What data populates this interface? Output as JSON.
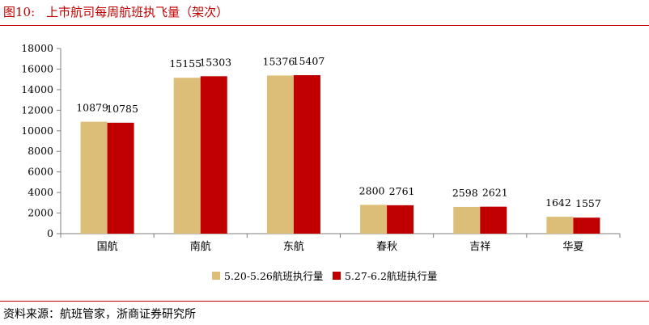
{
  "header": {
    "figure_label": "图10:",
    "figure_title": "上市航司每周航班执飞量（架次）"
  },
  "footer": {
    "source": "资料来源：航班管家，浙商证券研究所"
  },
  "colors": {
    "accent": "#c00000",
    "series1": "#dcbe78",
    "series2": "#c00000",
    "axis": "#7f7f7f"
  },
  "chart_data": {
    "type": "bar",
    "categories": [
      "国航",
      "南航",
      "东航",
      "春秋",
      "吉祥",
      "华夏"
    ],
    "series": [
      {
        "name": "5.20-5.26航班执行量",
        "values": [
          10879,
          15155,
          15376,
          2800,
          2598,
          1642
        ]
      },
      {
        "name": "5.27-6.2航班执行量",
        "values": [
          10785,
          15303,
          15407,
          2761,
          2621,
          1557
        ]
      }
    ],
    "ylim": [
      0,
      18000
    ],
    "yticks": [
      0,
      2000,
      4000,
      6000,
      8000,
      10000,
      12000,
      14000,
      16000,
      18000
    ],
    "title": "",
    "xlabel": "",
    "ylabel": "",
    "grid": false,
    "legend_position": "bottom",
    "data_labels": true
  }
}
